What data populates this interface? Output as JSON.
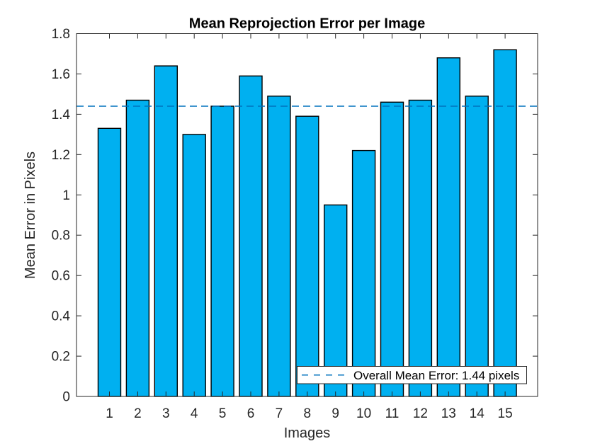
{
  "figure": {
    "background": "#FFFFFF"
  },
  "chart_data": {
    "type": "bar",
    "title": "Mean Reprojection Error per Image",
    "xlabel": "Images",
    "ylabel": "Mean Error in Pixels",
    "categories": [
      "1",
      "2",
      "3",
      "4",
      "5",
      "6",
      "7",
      "8",
      "9",
      "10",
      "11",
      "12",
      "13",
      "14",
      "15"
    ],
    "values": [
      1.33,
      1.47,
      1.64,
      1.3,
      1.44,
      1.59,
      1.49,
      1.39,
      0.95,
      1.22,
      1.46,
      1.47,
      1.68,
      1.49,
      1.72
    ],
    "ylim": [
      0,
      1.8
    ],
    "ytick_values": [
      0,
      0.2,
      0.4,
      0.6,
      0.8,
      1,
      1.2,
      1.4,
      1.6,
      1.8
    ],
    "ytick_labels": [
      "0",
      "0.2",
      "0.4",
      "0.6",
      "0.8",
      "1",
      "1.2",
      "1.4",
      "1.6",
      "1.8"
    ],
    "grid": false,
    "bar_color": "#00B0F0",
    "bar_edge_color": "#000000",
    "axis_color": "#262626",
    "text_color": "#262626",
    "mean_line": {
      "value": 1.44,
      "color": "#0072BD",
      "style": "dashed",
      "legend_label": "Overall Mean Error: 1.44 pixels"
    },
    "legend_position": "southeast"
  }
}
